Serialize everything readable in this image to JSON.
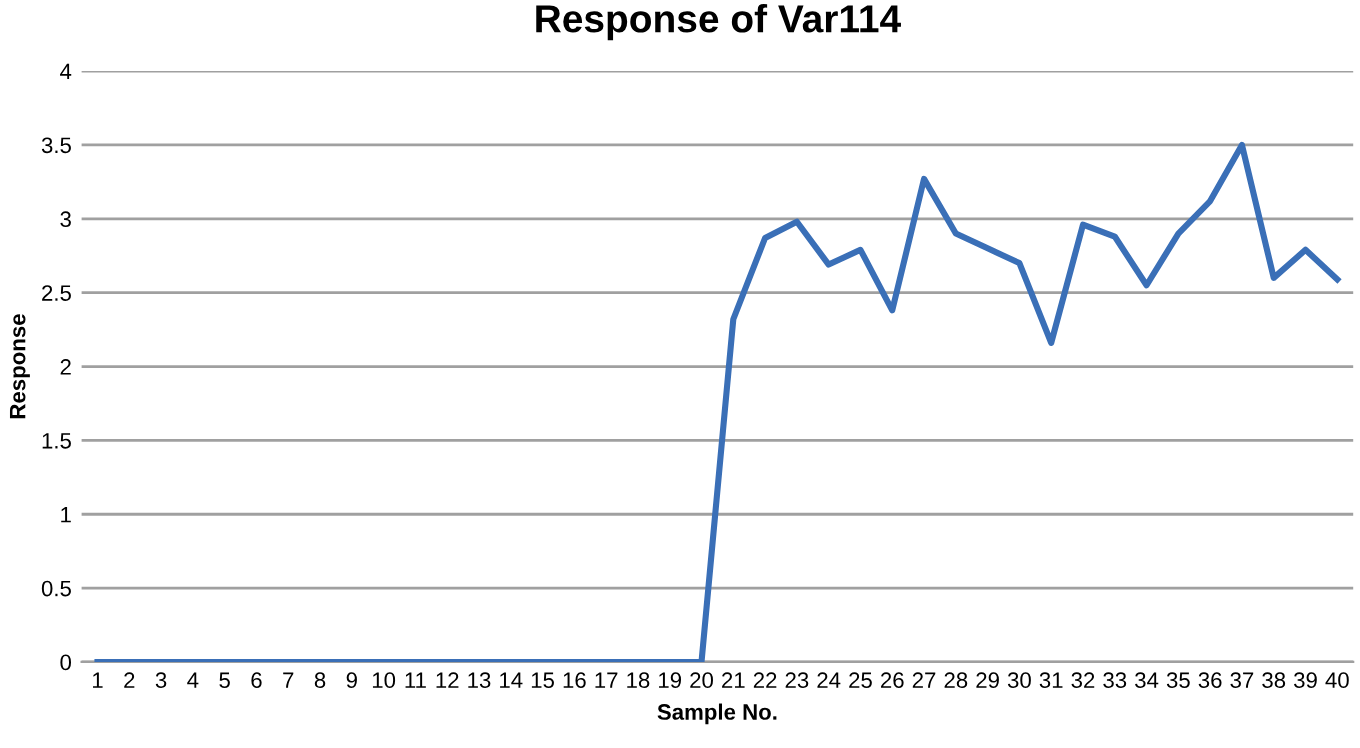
{
  "chart_data": {
    "type": "line",
    "title": "Response of Var114",
    "xlabel": "Sample No.",
    "ylabel": "Response",
    "categories": [
      "1",
      "2",
      "3",
      "4",
      "5",
      "6",
      "7",
      "8",
      "9",
      "10",
      "11",
      "12",
      "13",
      "14",
      "15",
      "16",
      "17",
      "18",
      "19",
      "20",
      "21",
      "22",
      "23",
      "24",
      "25",
      "26",
      "27",
      "28",
      "29",
      "30",
      "31",
      "32",
      "33",
      "34",
      "35",
      "36",
      "37",
      "38",
      "39",
      "40"
    ],
    "series": [
      {
        "color": "#3a6fb7",
        "values": [
          0,
          0,
          0,
          0,
          0,
          0,
          0,
          0,
          0,
          0,
          0,
          0,
          0,
          0,
          0,
          0,
          0,
          0,
          0,
          0,
          2.32,
          2.87,
          2.98,
          2.69,
          2.79,
          2.38,
          3.27,
          2.9,
          2.8,
          2.7,
          2.16,
          2.96,
          2.88,
          2.55,
          2.9,
          3.12,
          3.5,
          2.6,
          2.79,
          2.59
        ]
      }
    ],
    "ylim": [
      0,
      4
    ],
    "yticks": [
      0,
      0.5,
      1,
      1.5,
      2,
      2.5,
      3,
      3.5,
      4
    ],
    "grid": "y",
    "marker": "none",
    "line_style": "solid",
    "legend": false
  }
}
